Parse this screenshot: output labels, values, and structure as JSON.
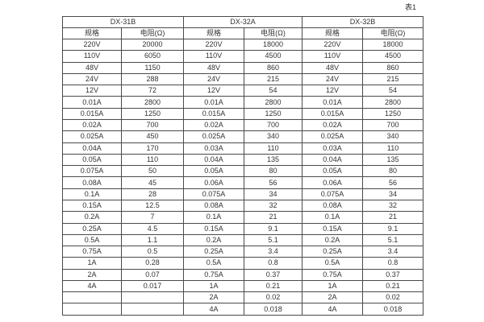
{
  "caption": "表1",
  "colors": {
    "background": "#ffffff",
    "border": "#4a4a4a",
    "text": "#333333"
  },
  "table": {
    "groups": [
      {
        "title": "DX-31B",
        "headers": [
          "规格",
          "电阻(Ω)"
        ],
        "rows": [
          [
            "220V",
            "20000"
          ],
          [
            "110V",
            "6050"
          ],
          [
            "48V",
            "1150"
          ],
          [
            "24V",
            "288"
          ],
          [
            "12V",
            "72"
          ],
          [
            "0.01A",
            "2800"
          ],
          [
            "0.015A",
            "1250"
          ],
          [
            "0.02A",
            "700"
          ],
          [
            "0.025A",
            "450"
          ],
          [
            "0.04A",
            "170"
          ],
          [
            "0.05A",
            "110"
          ],
          [
            "0.075A",
            "50"
          ],
          [
            "0.08A",
            "45"
          ],
          [
            "0.1A",
            "28"
          ],
          [
            "0.15A",
            "12.5"
          ],
          [
            "0.2A",
            "7"
          ],
          [
            "0.25A",
            "4.5"
          ],
          [
            "0.5A",
            "1.1"
          ],
          [
            "0.75A",
            "0.5"
          ],
          [
            "1A",
            "0.28"
          ],
          [
            "2A",
            "0.07"
          ],
          [
            "4A",
            "0.017"
          ],
          [
            "",
            ""
          ],
          [
            "",
            ""
          ]
        ]
      },
      {
        "title": "DX-32A",
        "headers": [
          "规格",
          "电阻(Ω)"
        ],
        "rows": [
          [
            "220V",
            "18000"
          ],
          [
            "110V",
            "4500"
          ],
          [
            "48V",
            "860"
          ],
          [
            "24V",
            "215"
          ],
          [
            "12V",
            "54"
          ],
          [
            "0.01A",
            "2800"
          ],
          [
            "0.015A",
            "1250"
          ],
          [
            "0.02A",
            "700"
          ],
          [
            "0.025A",
            "340"
          ],
          [
            "0.03A",
            "110"
          ],
          [
            "0.04A",
            "135"
          ],
          [
            "0.05A",
            "80"
          ],
          [
            "0.06A",
            "56"
          ],
          [
            "0.075A",
            "34"
          ],
          [
            "0.08A",
            "32"
          ],
          [
            "0.1A",
            "21"
          ],
          [
            "0.15A",
            "9.1"
          ],
          [
            "0.2A",
            "5.1"
          ],
          [
            "0.25A",
            "3.4"
          ],
          [
            "0.5A",
            "0.8"
          ],
          [
            "0.75A",
            "0.37"
          ],
          [
            "1A",
            "0.21"
          ],
          [
            "2A",
            "0.02"
          ],
          [
            "4A",
            "0.018"
          ]
        ]
      },
      {
        "title": "DX-32B",
        "headers": [
          "规格",
          "电阻(Ω)"
        ],
        "rows": [
          [
            "220V",
            "18000"
          ],
          [
            "110V",
            "4500"
          ],
          [
            "48V",
            "860"
          ],
          [
            "24V",
            "215"
          ],
          [
            "12V",
            "54"
          ],
          [
            "0.01A",
            "2800"
          ],
          [
            "0.015A",
            "1250"
          ],
          [
            "0.02A",
            "700"
          ],
          [
            "0.025A",
            "340"
          ],
          [
            "0.03A",
            "110"
          ],
          [
            "0.04A",
            "135"
          ],
          [
            "0.05A",
            "80"
          ],
          [
            "0.06A",
            "56"
          ],
          [
            "0.075A",
            "34"
          ],
          [
            "0.08A",
            "32"
          ],
          [
            "0.1A",
            "21"
          ],
          [
            "0.15A",
            "9.1"
          ],
          [
            "0.2A",
            "5.1"
          ],
          [
            "0.25A",
            "3.4"
          ],
          [
            "0.5A",
            "0.8"
          ],
          [
            "0.75A",
            "0.37"
          ],
          [
            "1A",
            "0.21"
          ],
          [
            "2A",
            "0.02"
          ],
          [
            "4A",
            "0.018"
          ]
        ]
      }
    ]
  }
}
